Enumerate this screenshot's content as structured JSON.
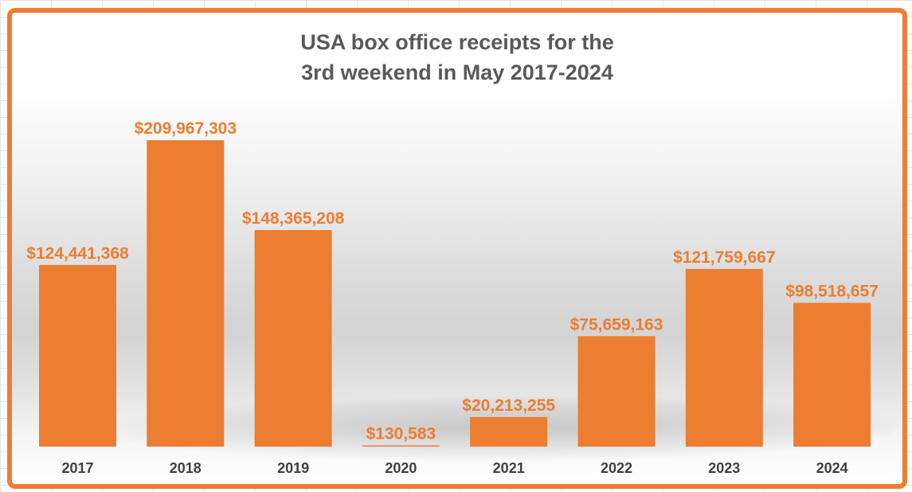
{
  "chart_data": {
    "type": "bar",
    "title_line1": "USA box office receipts for the",
    "title_line2": "3rd weekend in May 2017-2024",
    "categories": [
      "2017",
      "2018",
      "2019",
      "2020",
      "2021",
      "2022",
      "2023",
      "2024"
    ],
    "values": [
      124441368,
      209967303,
      148365208,
      130583,
      20213255,
      75659163,
      121759667,
      98518657
    ],
    "data_labels": [
      "$124,441,368",
      "$209,967,303",
      "$148,365,208",
      "$130,583",
      "$20,213,255",
      "$75,659,163",
      "$121,759,667",
      "$98,518,657"
    ],
    "ylim": [
      0,
      210000000
    ],
    "grid": false,
    "legend": "none",
    "bar_color": "#ed7d31",
    "frame_color": "#ed7d31",
    "title_color": "#595959",
    "tick_color": "#404040"
  }
}
